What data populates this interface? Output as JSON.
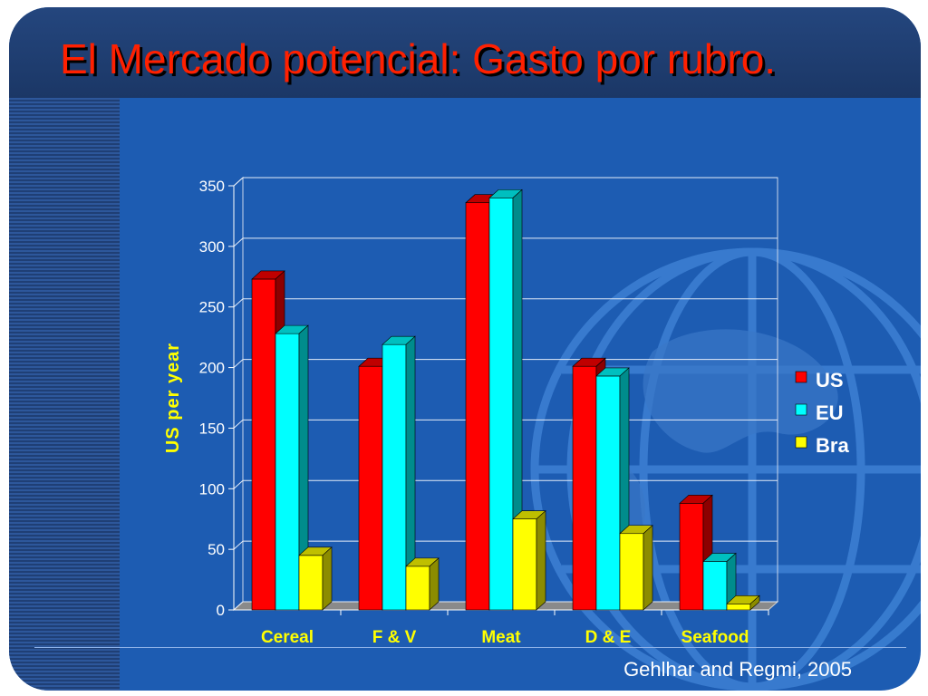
{
  "slide": {
    "title": "El Mercado potencial: Gasto por rubro.",
    "credit": "Gehlhar and Regmi, 2005"
  },
  "colors": {
    "background": "#1d5cb2",
    "title_band": "#1f3f74",
    "title_text": "#ff2000",
    "axis_text": "#ffff00",
    "tick_text": "#ffffff"
  },
  "chart_data": {
    "type": "bar",
    "style": "3d-clustered-columns",
    "categories": [
      "Cereal",
      "F & V",
      "Meat",
      "D & E",
      "Seafood"
    ],
    "series": [
      {
        "name": "US",
        "color": "#ff0000",
        "values": [
          273,
          201,
          336,
          201,
          88
        ]
      },
      {
        "name": "EU",
        "color": "#00ffff",
        "values": [
          228,
          219,
          340,
          193,
          40
        ]
      },
      {
        "name": "Bra",
        "color": "#ffff00",
        "values": [
          45,
          36,
          75,
          63,
          5
        ]
      }
    ],
    "ylabel": "US per year",
    "xlabel": "",
    "ylim": [
      0,
      350
    ],
    "yticks": [
      0,
      50,
      100,
      150,
      200,
      250,
      300,
      350
    ],
    "grid": true,
    "legend": "right"
  }
}
